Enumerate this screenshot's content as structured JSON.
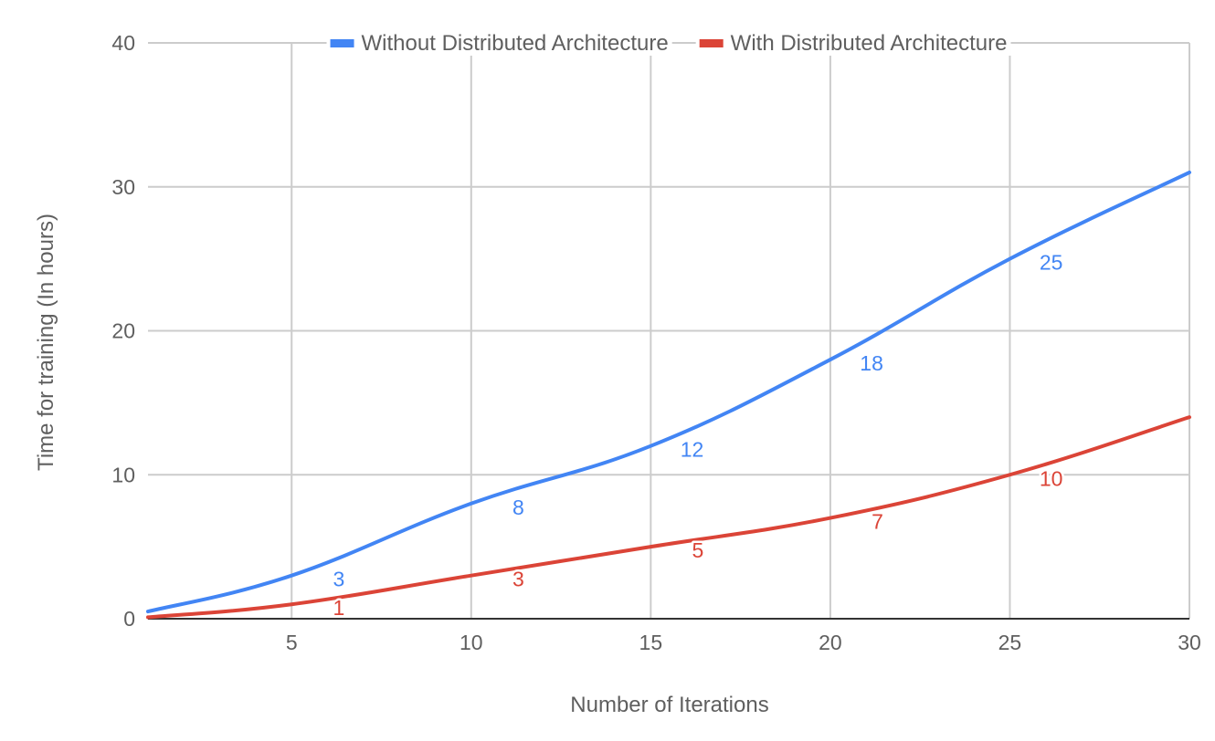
{
  "chart_data": {
    "type": "line",
    "title": "",
    "xlabel": "Number of Iterations",
    "ylabel": "Time for training (In hours)",
    "xlim": [
      1,
      30
    ],
    "ylim": [
      0,
      40
    ],
    "x_ticks": [
      5,
      10,
      15,
      20,
      25,
      30
    ],
    "y_ticks": [
      0,
      10,
      20,
      30,
      40
    ],
    "grid": true,
    "smooth": true,
    "legend_position": "top",
    "series": [
      {
        "name": "Without Distributed Architecture",
        "color": "#4285f4",
        "x": [
          1,
          5,
          10,
          15,
          20,
          25,
          30
        ],
        "y": [
          0.5,
          3,
          8,
          12,
          18,
          25,
          31
        ],
        "data_labels": [
          {
            "x": 5,
            "y": 3,
            "label": "3"
          },
          {
            "x": 10,
            "y": 8,
            "label": "8"
          },
          {
            "x": 15,
            "y": 12,
            "label": "12"
          },
          {
            "x": 20,
            "y": 18,
            "label": "18"
          },
          {
            "x": 25,
            "y": 25,
            "label": "25"
          }
        ]
      },
      {
        "name": "With Distributed Architecture",
        "color": "#db4437",
        "x": [
          1,
          5,
          10,
          15,
          20,
          25,
          30
        ],
        "y": [
          0.1,
          1,
          3,
          5,
          7,
          10,
          14
        ],
        "data_labels": [
          {
            "x": 5,
            "y": 1,
            "label": "1"
          },
          {
            "x": 10,
            "y": 3,
            "label": "3"
          },
          {
            "x": 15,
            "y": 5,
            "label": "5"
          },
          {
            "x": 20,
            "y": 7,
            "label": "7"
          },
          {
            "x": 25,
            "y": 10,
            "label": "10"
          }
        ]
      }
    ]
  }
}
